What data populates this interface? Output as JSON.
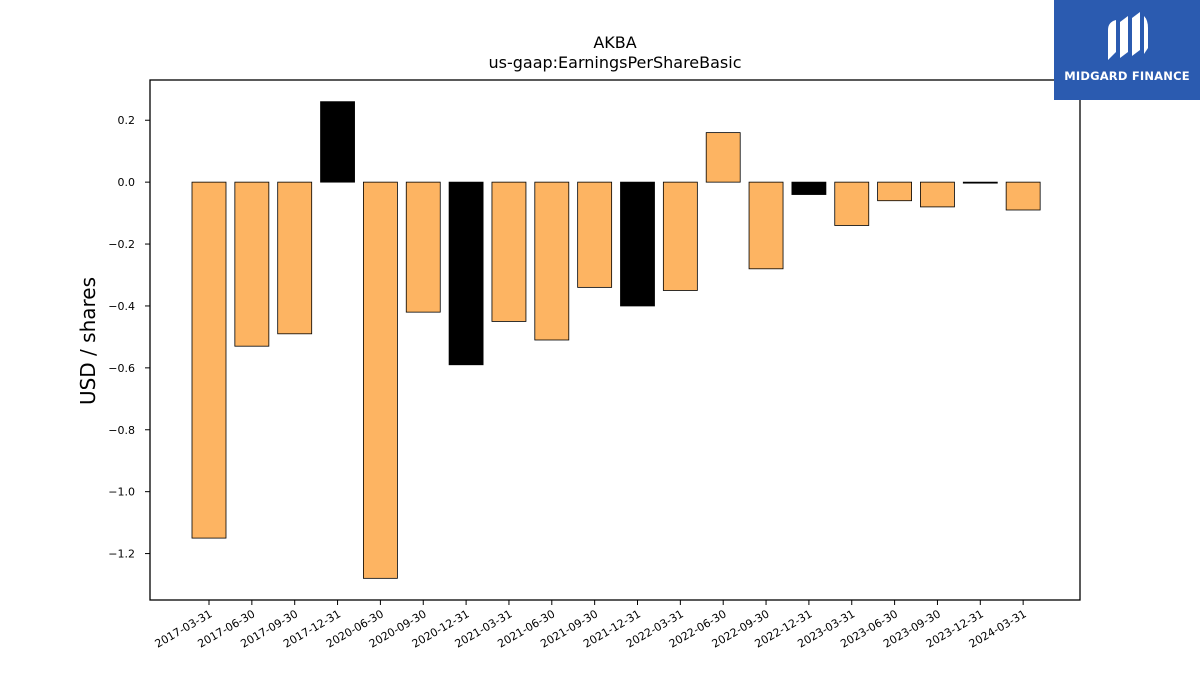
{
  "brand": {
    "name": "MIDGARD FINANCE",
    "bg_color": "#2b5bb0",
    "icon": "midgard-logo-icon"
  },
  "chart_data": {
    "type": "bar",
    "title": "AKBA",
    "subtitle": "us-gaap:EarningsPerShareBasic",
    "xlabel": "",
    "ylabel": "USD / shares",
    "ylim": [
      -1.35,
      0.33
    ],
    "yticks": [
      0.2,
      0.0,
      -0.2,
      -0.4,
      -0.6,
      -0.8,
      -1.0,
      -1.2
    ],
    "ytick_labels": [
      "0.2",
      "0.0",
      "−0.2",
      "−0.4",
      "−0.6",
      "−0.8",
      "−1.0",
      "−1.2"
    ],
    "grid": false,
    "legend": "none",
    "colors": {
      "orange": "#fdb462",
      "black": "#000000"
    },
    "categories": [
      "2017-03-31",
      "2017-06-30",
      "2017-09-30",
      "2017-12-31",
      "2020-06-30",
      "2020-09-30",
      "2020-12-31",
      "2021-03-31",
      "2021-06-30",
      "2021-09-30",
      "2021-12-31",
      "2022-03-31",
      "2022-06-30",
      "2022-09-30",
      "2022-12-31",
      "2023-03-31",
      "2023-06-30",
      "2023-09-30",
      "2023-12-31",
      "2024-03-31"
    ],
    "values": [
      -1.15,
      -0.53,
      -0.49,
      0.26,
      -1.28,
      -0.42,
      -0.59,
      -0.45,
      -0.51,
      -0.34,
      -0.4,
      -0.35,
      0.16,
      -0.28,
      -0.04,
      -0.14,
      -0.06,
      -0.08,
      0.0,
      -0.09
    ],
    "bar_colors": [
      "orange",
      "orange",
      "orange",
      "black",
      "orange",
      "orange",
      "black",
      "orange",
      "orange",
      "orange",
      "black",
      "orange",
      "orange",
      "orange",
      "black",
      "orange",
      "orange",
      "orange",
      "black",
      "orange"
    ]
  }
}
